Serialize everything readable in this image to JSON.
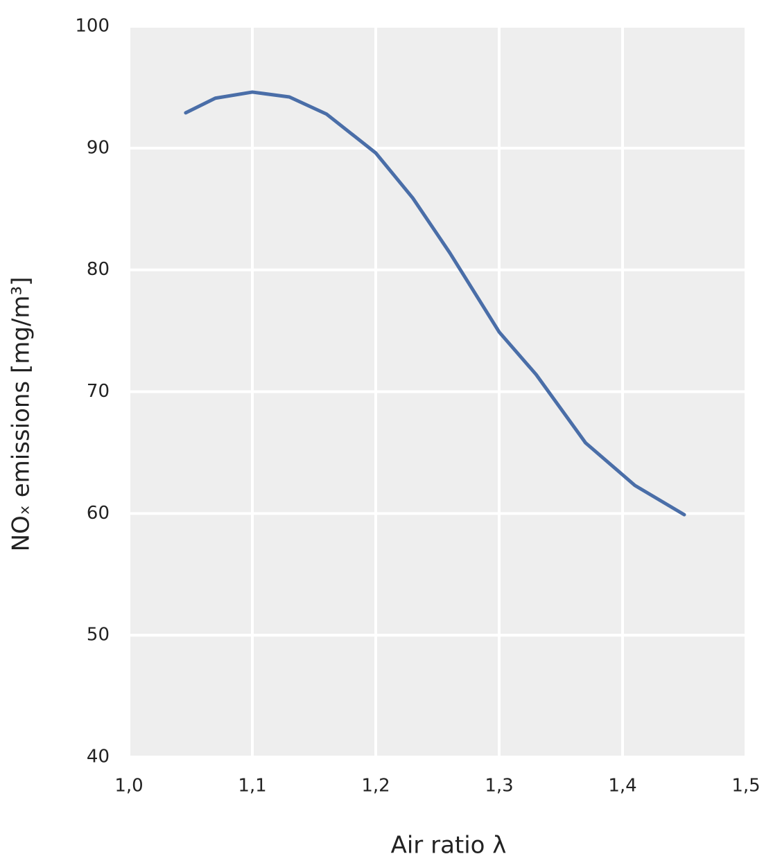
{
  "chart_data": {
    "type": "line",
    "x_label": "Air ratio λ",
    "y_label": "NOₓ emissions [mg/m³]",
    "series": [
      {
        "color": "#4a6ea8",
        "x": [
          1.046,
          1.07,
          1.1,
          1.13,
          1.16,
          1.2,
          1.23,
          1.26,
          1.3,
          1.33,
          1.37,
          1.41,
          1.45
        ],
        "values": [
          92.9,
          94.1,
          94.6,
          94.2,
          92.8,
          89.6,
          85.9,
          81.4,
          74.9,
          71.4,
          65.8,
          62.3,
          59.9
        ]
      }
    ],
    "xlim": [
      1.0,
      1.5
    ],
    "xticks": [
      {
        "value": 1.0,
        "label": "1,0"
      },
      {
        "value": 1.1,
        "label": "1,1"
      },
      {
        "value": 1.2,
        "label": "1,2"
      },
      {
        "value": 1.3,
        "label": "1,3"
      },
      {
        "value": 1.4,
        "label": "1,4"
      },
      {
        "value": 1.5,
        "label": "1,5"
      }
    ],
    "ylim": [
      40,
      100
    ],
    "yticks": [
      40,
      50,
      60,
      70,
      80,
      90,
      100
    ],
    "grid": true,
    "background": "#eeeeee"
  }
}
